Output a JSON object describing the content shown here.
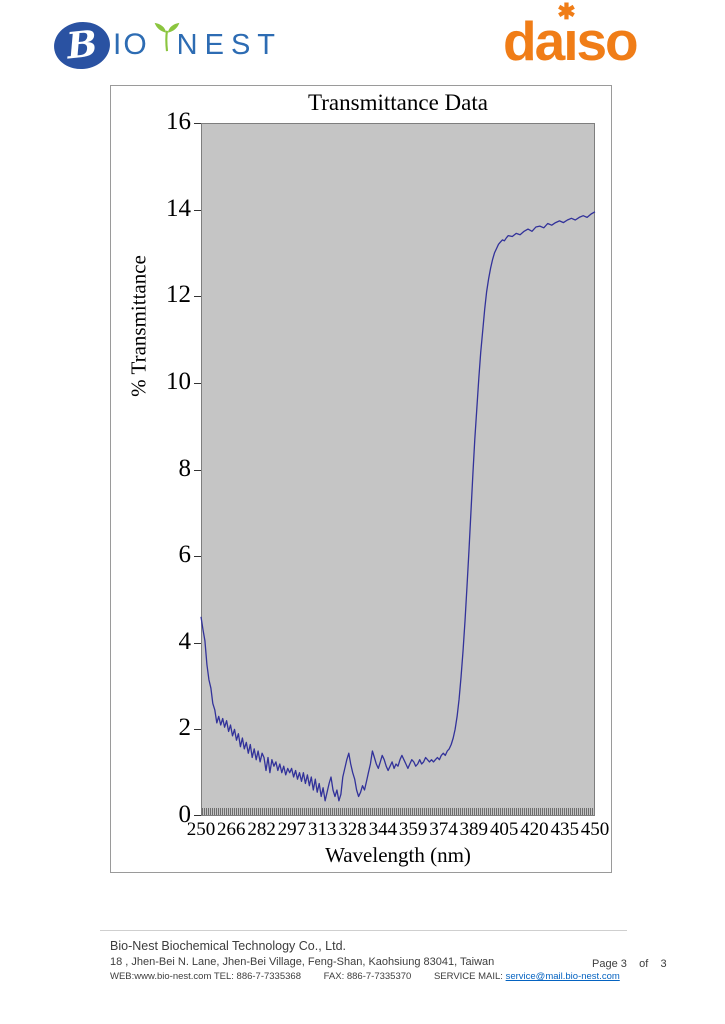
{
  "header": {
    "bionest_logo": {
      "b": "B",
      "io": "IO",
      "nest": "NEST",
      "circle_color": "#2a52a2",
      "text_color": "#2d6cb3",
      "leaf_color": "#8bc53f"
    },
    "daiso_logo": {
      "da": "da",
      "i": "ı",
      "star": "✱",
      "so": "so",
      "color": "#f07d17"
    }
  },
  "chart_data": {
    "type": "line",
    "title": "Transmittance Data",
    "xlabel": "Wavelength (nm)",
    "ylabel": "% Transmittance",
    "xlim": [
      250,
      450
    ],
    "ylim": [
      0,
      16
    ],
    "x_ticks": [
      "250",
      "266",
      "282",
      "297",
      "313",
      "328",
      "344",
      "359",
      "374",
      "389",
      "405",
      "420",
      "435",
      "450"
    ],
    "y_ticks": [
      0,
      2,
      4,
      6,
      8,
      10,
      12,
      14,
      16
    ],
    "grid": false,
    "legend": "none",
    "plot_bg": "#c5c5c5",
    "line_color": "#32329a",
    "series": [
      {
        "name": "transmittance",
        "points": [
          [
            250,
            4.6
          ],
          [
            251,
            4.3
          ],
          [
            252,
            4.05
          ],
          [
            253,
            3.5
          ],
          [
            254,
            3.15
          ],
          [
            255,
            2.95
          ],
          [
            256,
            2.6
          ],
          [
            257,
            2.45
          ],
          [
            258,
            2.15
          ],
          [
            259,
            2.3
          ],
          [
            260,
            2.1
          ],
          [
            261,
            2.25
          ],
          [
            262,
            2.05
          ],
          [
            263,
            2.2
          ],
          [
            264,
            1.95
          ],
          [
            265,
            2.1
          ],
          [
            266,
            1.85
          ],
          [
            267,
            2.0
          ],
          [
            268,
            1.75
          ],
          [
            269,
            1.9
          ],
          [
            270,
            1.6
          ],
          [
            271,
            1.8
          ],
          [
            272,
            1.55
          ],
          [
            273,
            1.7
          ],
          [
            274,
            1.45
          ],
          [
            275,
            1.65
          ],
          [
            276,
            1.35
          ],
          [
            277,
            1.55
          ],
          [
            278,
            1.3
          ],
          [
            279,
            1.5
          ],
          [
            280,
            1.25
          ],
          [
            281,
            1.45
          ],
          [
            282,
            1.35
          ],
          [
            283,
            1.05
          ],
          [
            284,
            1.35
          ],
          [
            285,
            1.0
          ],
          [
            286,
            1.3
          ],
          [
            287,
            1.15
          ],
          [
            288,
            1.25
          ],
          [
            289,
            1.05
          ],
          [
            290,
            1.2
          ],
          [
            291,
            1.0
          ],
          [
            292,
            1.15
          ],
          [
            293,
            0.95
          ],
          [
            294,
            1.1
          ],
          [
            295,
            1.0
          ],
          [
            296,
            1.1
          ],
          [
            297,
            0.9
          ],
          [
            298,
            1.05
          ],
          [
            299,
            0.85
          ],
          [
            300,
            1.0
          ],
          [
            301,
            0.8
          ],
          [
            302,
            1.0
          ],
          [
            303,
            0.75
          ],
          [
            304,
            0.95
          ],
          [
            305,
            0.7
          ],
          [
            306,
            0.9
          ],
          [
            307,
            0.6
          ],
          [
            308,
            0.85
          ],
          [
            309,
            0.55
          ],
          [
            310,
            0.75
          ],
          [
            311,
            0.45
          ],
          [
            312,
            0.65
          ],
          [
            313,
            0.35
          ],
          [
            314,
            0.55
          ],
          [
            315,
            0.75
          ],
          [
            316,
            0.9
          ],
          [
            317,
            0.6
          ],
          [
            318,
            0.45
          ],
          [
            319,
            0.6
          ],
          [
            320,
            0.35
          ],
          [
            321,
            0.5
          ],
          [
            322,
            0.9
          ],
          [
            323,
            1.1
          ],
          [
            324,
            1.3
          ],
          [
            325,
            1.45
          ],
          [
            326,
            1.2
          ],
          [
            327,
            1.0
          ],
          [
            328,
            0.85
          ],
          [
            329,
            0.6
          ],
          [
            330,
            0.45
          ],
          [
            331,
            0.55
          ],
          [
            332,
            0.7
          ],
          [
            333,
            0.6
          ],
          [
            334,
            0.8
          ],
          [
            335,
            1.0
          ],
          [
            336,
            1.2
          ],
          [
            337,
            1.5
          ],
          [
            338,
            1.35
          ],
          [
            339,
            1.2
          ],
          [
            340,
            1.1
          ],
          [
            341,
            1.25
          ],
          [
            342,
            1.4
          ],
          [
            343,
            1.3
          ],
          [
            344,
            1.15
          ],
          [
            345,
            1.05
          ],
          [
            346,
            1.15
          ],
          [
            347,
            1.25
          ],
          [
            348,
            1.1
          ],
          [
            349,
            1.2
          ],
          [
            350,
            1.15
          ],
          [
            351,
            1.3
          ],
          [
            352,
            1.4
          ],
          [
            353,
            1.3
          ],
          [
            354,
            1.2
          ],
          [
            355,
            1.1
          ],
          [
            356,
            1.2
          ],
          [
            357,
            1.3
          ],
          [
            358,
            1.25
          ],
          [
            359,
            1.15
          ],
          [
            360,
            1.2
          ],
          [
            361,
            1.3
          ],
          [
            362,
            1.2
          ],
          [
            363,
            1.25
          ],
          [
            364,
            1.35
          ],
          [
            365,
            1.3
          ],
          [
            366,
            1.25
          ],
          [
            367,
            1.3
          ],
          [
            368,
            1.25
          ],
          [
            369,
            1.3
          ],
          [
            370,
            1.35
          ],
          [
            371,
            1.3
          ],
          [
            372,
            1.4
          ],
          [
            373,
            1.45
          ],
          [
            374,
            1.4
          ],
          [
            375,
            1.5
          ],
          [
            376,
            1.55
          ],
          [
            377,
            1.65
          ],
          [
            378,
            1.8
          ],
          [
            379,
            2.0
          ],
          [
            380,
            2.3
          ],
          [
            381,
            2.7
          ],
          [
            382,
            3.2
          ],
          [
            383,
            3.8
          ],
          [
            384,
            4.5
          ],
          [
            385,
            5.3
          ],
          [
            386,
            6.1
          ],
          [
            387,
            7.0
          ],
          [
            388,
            7.9
          ],
          [
            389,
            8.7
          ],
          [
            390,
            9.4
          ],
          [
            391,
            10.1
          ],
          [
            392,
            10.7
          ],
          [
            393,
            11.2
          ],
          [
            394,
            11.7
          ],
          [
            395,
            12.1
          ],
          [
            396,
            12.4
          ],
          [
            397,
            12.65
          ],
          [
            398,
            12.85
          ],
          [
            399,
            13.0
          ],
          [
            400,
            13.1
          ],
          [
            401,
            13.2
          ],
          [
            402,
            13.25
          ],
          [
            403,
            13.3
          ],
          [
            404,
            13.28
          ],
          [
            405,
            13.35
          ],
          [
            406,
            13.4
          ],
          [
            408,
            13.38
          ],
          [
            410,
            13.45
          ],
          [
            412,
            13.42
          ],
          [
            414,
            13.5
          ],
          [
            416,
            13.55
          ],
          [
            418,
            13.5
          ],
          [
            420,
            13.6
          ],
          [
            422,
            13.62
          ],
          [
            424,
            13.58
          ],
          [
            426,
            13.68
          ],
          [
            428,
            13.64
          ],
          [
            430,
            13.7
          ],
          [
            432,
            13.74
          ],
          [
            434,
            13.7
          ],
          [
            436,
            13.76
          ],
          [
            438,
            13.8
          ],
          [
            440,
            13.76
          ],
          [
            442,
            13.82
          ],
          [
            444,
            13.86
          ],
          [
            446,
            13.82
          ],
          [
            448,
            13.9
          ],
          [
            450,
            13.95
          ]
        ]
      }
    ]
  },
  "footer": {
    "company": "Bio-Nest Biochemical Technology Co., Ltd.",
    "address": "18 , Jhen-Bei N. Lane, Jhen-Bei Village, Feng-Shan, Kaohsiung 83041, Taiwan",
    "web_tel": "WEB:www.bio-nest.com TEL: 886-7-7335368",
    "fax": "FAX: 886-7-7335370",
    "service_label": "SERVICE MAIL:",
    "service_mail": "service@mail.bio-nest.com",
    "link_color": "#0563c1",
    "page": "Page 3    of    3"
  }
}
